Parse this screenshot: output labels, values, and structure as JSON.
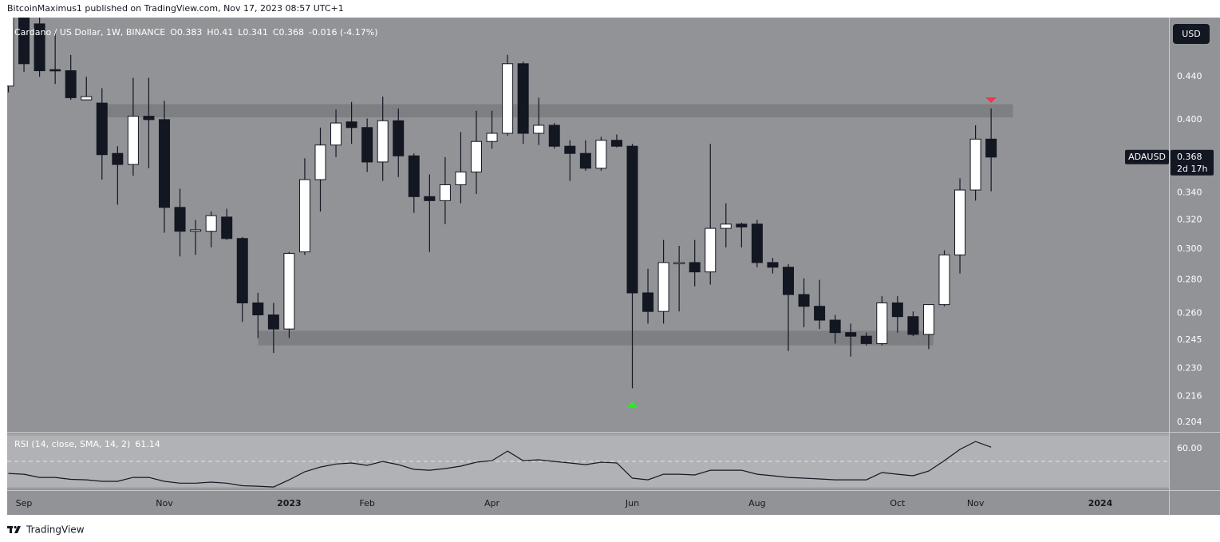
{
  "header": "BitcoinMaximus1 published on TradingView.com, Nov 17, 2023 08:57 UTC+1",
  "footer": "TradingView",
  "chart_data": {
    "type": "candlestick",
    "title": "Cardano / US Dollar, 1W, BINANCE",
    "ohlc_labels": [
      "O",
      "H",
      "L",
      "C"
    ],
    "change_label": "-0.016 (-4.17%)",
    "currency": "USD",
    "symbol": "ADAUSD",
    "countdown": "2d 17h",
    "categories": [
      null,
      "Sep",
      null,
      null,
      null,
      null,
      null,
      null,
      null,
      null,
      "Nov",
      null,
      null,
      null,
      null,
      null,
      null,
      null,
      "2023",
      null,
      null,
      null,
      null,
      "Feb",
      null,
      null,
      null,
      null,
      null,
      null,
      null,
      "Apr",
      null,
      null,
      null,
      null,
      null,
      null,
      null,
      null,
      "Jun",
      null,
      null,
      null,
      null,
      null,
      null,
      null,
      "Aug",
      null,
      null,
      null,
      null,
      null,
      null,
      null,
      null,
      "Oct",
      null,
      null,
      null,
      null,
      "Nov",
      null,
      null,
      null,
      null,
      null,
      null,
      null,
      "2024",
      null,
      null,
      null,
      null
    ],
    "open": [
      0.431,
      0.52,
      0.495,
      0.447,
      0.446,
      0.418,
      0.415,
      0.371,
      0.362,
      0.403,
      0.4,
      0.329,
      0.312,
      0.312,
      0.322,
      0.307,
      0.266,
      0.259,
      0.251,
      0.298,
      0.35,
      0.378,
      0.398,
      0.393,
      0.364,
      0.399,
      0.369,
      0.337,
      0.334,
      0.346,
      0.356,
      0.381,
      0.388,
      0.453,
      0.388,
      0.395,
      0.377,
      0.371,
      0.359,
      0.382,
      0.377,
      0.272,
      0.261,
      0.291,
      0.291,
      0.285,
      0.314,
      0.317,
      0.317,
      0.291,
      0.288,
      0.271,
      0.264,
      0.256,
      0.249,
      0.247,
      0.243,
      0.266,
      0.258,
      0.248,
      0.265,
      0.296,
      0.342,
      0.383,
      null,
      null,
      null,
      null,
      null,
      null,
      null,
      null,
      null,
      null,
      null
    ],
    "high": [
      0.55,
      0.56,
      0.52,
      0.486,
      0.462,
      0.44,
      0.429,
      0.377,
      0.439,
      0.439,
      0.417,
      0.343,
      0.32,
      0.326,
      0.328,
      0.308,
      0.272,
      0.266,
      0.298,
      0.367,
      0.393,
      0.409,
      0.416,
      0.401,
      0.421,
      0.41,
      0.371,
      0.354,
      0.368,
      0.389,
      0.408,
      0.408,
      0.462,
      0.455,
      0.42,
      0.397,
      0.382,
      0.382,
      0.385,
      0.387,
      0.379,
      0.287,
      0.306,
      0.302,
      0.306,
      0.379,
      0.332,
      0.318,
      0.32,
      0.294,
      0.29,
      0.281,
      0.28,
      0.259,
      0.254,
      0.249,
      0.27,
      0.27,
      0.261,
      0.265,
      0.299,
      0.351,
      0.395,
      0.41,
      null,
      null,
      null,
      null,
      null,
      null,
      null,
      null,
      null,
      null,
      null
    ],
    "low": [
      0.425,
      0.445,
      0.44,
      0.433,
      0.418,
      0.418,
      0.35,
      0.331,
      0.353,
      0.359,
      0.311,
      0.295,
      0.296,
      0.301,
      0.306,
      0.255,
      0.246,
      0.238,
      0.246,
      0.296,
      0.326,
      0.368,
      0.379,
      0.356,
      0.349,
      0.352,
      0.325,
      0.298,
      0.317,
      0.332,
      0.339,
      0.375,
      0.386,
      0.379,
      0.378,
      0.375,
      0.349,
      0.357,
      0.357,
      0.376,
      0.22,
      0.254,
      0.254,
      0.261,
      0.276,
      0.277,
      0.301,
      0.301,
      0.288,
      0.284,
      0.239,
      0.252,
      0.251,
      0.243,
      0.236,
      0.242,
      0.242,
      0.249,
      0.247,
      0.24,
      0.264,
      0.284,
      0.334,
      0.341,
      null,
      null,
      null,
      null,
      null,
      null,
      null,
      null,
      null,
      null,
      null
    ],
    "close": [
      0.52,
      0.453,
      0.446,
      0.446,
      0.42,
      0.421,
      0.37,
      0.362,
      0.403,
      0.4,
      0.329,
      0.312,
      0.313,
      0.323,
      0.307,
      0.266,
      0.259,
      0.251,
      0.297,
      0.35,
      0.378,
      0.397,
      0.393,
      0.364,
      0.399,
      0.369,
      0.337,
      0.334,
      0.346,
      0.356,
      0.381,
      0.388,
      0.453,
      0.388,
      0.395,
      0.377,
      0.371,
      0.359,
      0.382,
      0.377,
      0.272,
      0.261,
      0.291,
      0.291,
      0.285,
      0.314,
      0.317,
      0.315,
      0.291,
      0.288,
      0.271,
      0.264,
      0.256,
      0.249,
      0.247,
      0.243,
      0.266,
      0.258,
      0.248,
      0.265,
      0.296,
      0.342,
      0.383,
      0.368,
      null,
      null,
      null,
      null,
      null,
      null,
      null,
      null,
      null,
      null,
      null
    ],
    "up_color": "#ffffff",
    "down_color": "#131722",
    "log_scale": true,
    "grid": false,
    "ylim": [
      0.2,
      0.502
    ],
    "yticks": [
      {
        "value": 0.44,
        "label": "0.440"
      },
      {
        "value": 0.4,
        "label": "0.400"
      },
      {
        "value": 0.34,
        "label": "0.340"
      },
      {
        "value": 0.32,
        "label": "0.320"
      },
      {
        "value": 0.3,
        "label": "0.300"
      },
      {
        "value": 0.28,
        "label": "0.280"
      },
      {
        "value": 0.26,
        "label": "0.260"
      },
      0.245,
      {
        "value": 0.23,
        "label": "0.230"
      },
      0.216,
      0.204
    ],
    "zones": [
      {
        "from": 0.402,
        "to": 0.414,
        "start": 6,
        "end": 64.4,
        "color": "#7e7f83"
      },
      {
        "from": 0.242,
        "to": 0.25,
        "start": 16,
        "end": 59.3,
        "color": "#7e7f83"
      }
    ],
    "markers": [
      {
        "index": 63,
        "position": "above",
        "color": "#f23645"
      },
      {
        "index": 40,
        "position": "below",
        "color": "#2ee82a"
      }
    ],
    "rsi": {
      "title": "RSI (14, close, SMA, 14, 2)",
      "values": [
        40.6,
        40,
        37.5,
        37.5,
        36,
        35.6,
        34.4,
        34.4,
        37.5,
        37.5,
        34.4,
        33,
        33,
        33.8,
        33,
        31,
        30.6,
        30,
        35.6,
        41.9,
        45.6,
        48,
        48.8,
        46.9,
        50,
        47.5,
        43.8,
        43.1,
        44.4,
        46.3,
        49.4,
        50.6,
        58.1,
        50.6,
        51.3,
        50,
        48.8,
        47.5,
        49.4,
        48.8,
        36.9,
        35.6,
        40,
        40,
        39.4,
        43.1,
        43.1,
        43.1,
        40,
        38.8,
        37.5,
        36.9,
        36.3,
        35.6,
        35.6,
        35.6,
        41.3,
        40,
        38.8,
        42.5,
        50.6,
        59.4,
        65.6,
        61.14,
        null,
        null,
        null,
        null,
        null,
        null,
        null,
        null,
        null,
        null,
        null
      ],
      "color": "#131722",
      "ylim": [
        28.8,
        71.9
      ],
      "yticks": [
        {
          "value": 60,
          "label": "60.00"
        }
      ],
      "band": [
        30,
        70
      ],
      "midline": 50
    }
  }
}
